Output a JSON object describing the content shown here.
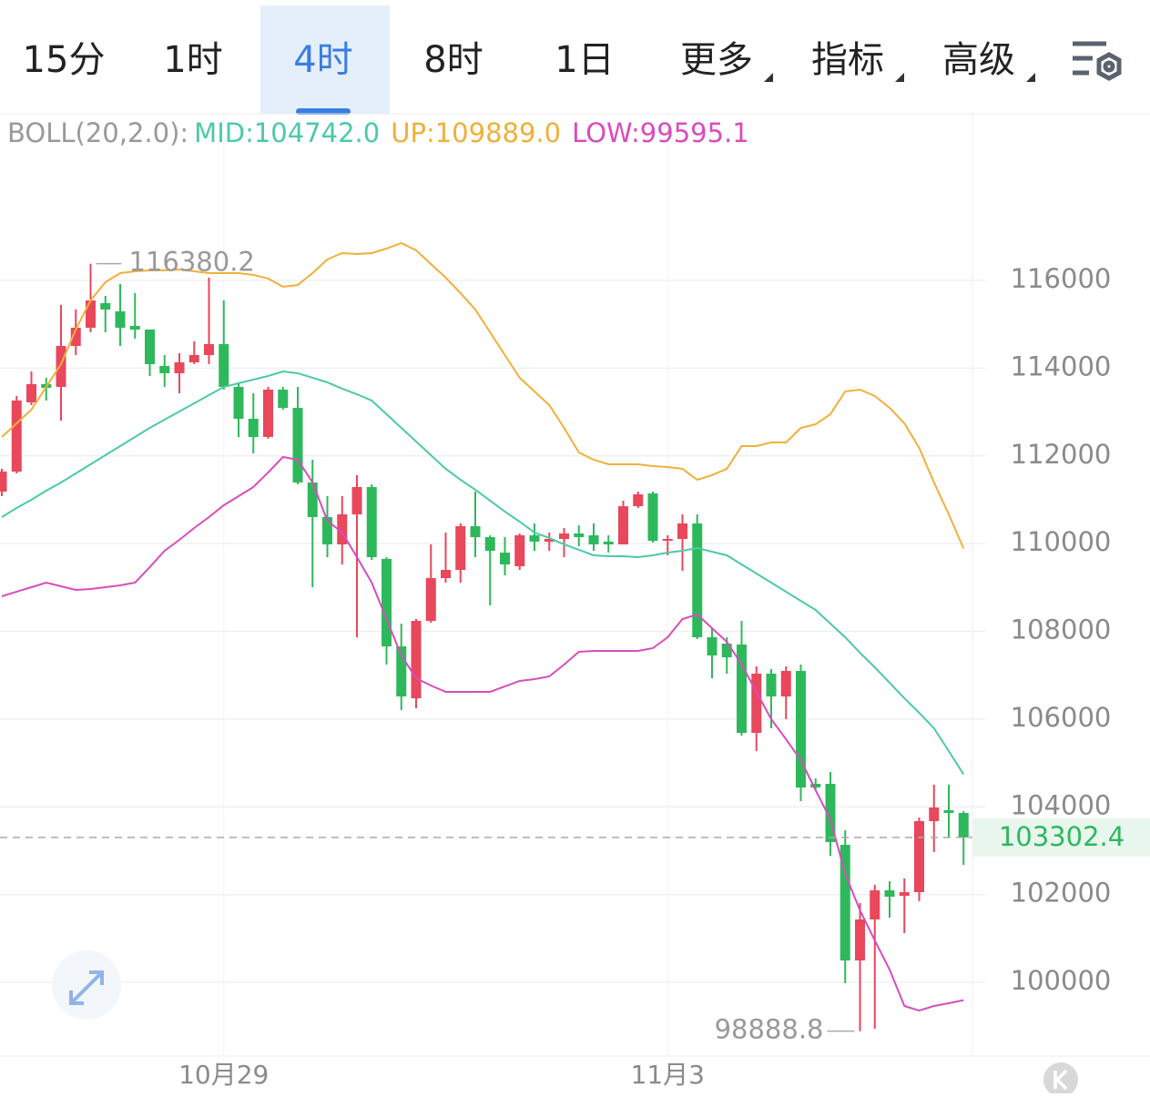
{
  "toolbar": {
    "tabs": [
      "15分",
      "1时",
      "4时",
      "8时",
      "1日",
      "更多",
      "指标",
      "高级"
    ],
    "active": 2
  },
  "chart_data": {
    "type": "candlestick",
    "legend_prefix": "BOLL(20,2.0):",
    "categories": [
      null,
      null,
      null,
      null,
      null,
      null,
      null,
      null,
      null,
      null,
      null,
      null,
      null,
      null,
      null,
      "10月29",
      null,
      null,
      null,
      null,
      null,
      null,
      null,
      null,
      null,
      null,
      null,
      null,
      null,
      null,
      null,
      null,
      null,
      null,
      null,
      null,
      null,
      null,
      null,
      null,
      null,
      null,
      null,
      null,
      null,
      "11月3",
      null,
      null,
      null,
      null,
      null,
      null,
      null,
      null,
      null,
      null,
      null,
      null,
      null,
      null,
      null,
      null,
      null,
      null,
      null,
      null
    ],
    "open": [
      111186,
      111642,
      113220,
      113635,
      113572,
      114506,
      114921,
      115481,
      115295,
      114962,
      114879,
      114050,
      113883,
      114132,
      114298,
      114548,
      113572,
      112846,
      112431,
      113510,
      113095,
      111394,
      110605,
      109983,
      110667,
      111290,
      109650,
      107658,
      106475,
      108239,
      109215,
      109401,
      110397,
      110148,
      109795,
      109484,
      110190,
      110045,
      110107,
      110231,
      110190,
      110045,
      109983,
      110853,
      111144,
      110065,
      110107,
      110460,
      107866,
      107720,
      107700,
      105687,
      107036,
      106517,
      107098,
      104525,
      104525,
      103135,
      100500,
      101434,
      102098,
      101973,
      102056,
      103675,
      103924,
      103862
    ],
    "high": [
      111705,
      113365,
      113925,
      113780,
      115440,
      115336,
      116380.2,
      115647,
      115917,
      115710,
      114879,
      114298,
      114340,
      114609,
      116062,
      115544,
      113676,
      113427,
      113572,
      113572,
      113572,
      111912,
      111082,
      111082,
      111560,
      111352,
      109692,
      108177,
      108281,
      109983,
      110252,
      110460,
      111186,
      110190,
      110148,
      110231,
      110460,
      110252,
      110356,
      110418,
      110460,
      110190,
      110978,
      111186,
      111186,
      110190,
      110667,
      110667,
      108073,
      107866,
      108239,
      107202,
      107140,
      107202,
      107244,
      104650,
      104795,
      103467,
      101807,
      102222,
      102305,
      102367,
      103757,
      104505,
      104505,
      103903
    ],
    "low": [
      111082,
      111600,
      113157,
      113261,
      112804,
      114298,
      114817,
      114817,
      114506,
      114672,
      113821,
      113572,
      113427,
      114091,
      114091,
      113510,
      112431,
      112058,
      112390,
      113053,
      111352,
      109007,
      109692,
      109526,
      107866,
      109630,
      107243,
      106206,
      106247,
      108198,
      109111,
      109111,
      109692,
      108592,
      109277,
      109401,
      109837,
      109837,
      109692,
      109941,
      109837,
      109796,
      109983,
      110812,
      110024,
      109733,
      109381,
      107824,
      106932,
      107036,
      105625,
      105272,
      105791,
      105999,
      104131,
      104380,
      102886,
      99981,
      98888.8,
      98943,
      101475,
      101122,
      101849,
      102969,
      103301,
      102678
    ],
    "close": [
      111642,
      113261,
      113635,
      113551,
      114506,
      114921,
      115544,
      115336,
      114921,
      114879,
      114091,
      113883,
      114132,
      114298,
      114548,
      113572,
      112846,
      112431,
      113510,
      113095,
      111394,
      110605,
      109983,
      110667,
      111290,
      109692,
      107658,
      106517,
      108239,
      109215,
      109401,
      110397,
      110148,
      109837,
      109526,
      110190,
      110045,
      110107,
      110231,
      110148,
      109983,
      109983,
      110853,
      111124,
      110065,
      110107,
      110460,
      107866,
      107451,
      107409,
      105687,
      107036,
      106517,
      107098,
      104442,
      104442,
      103197,
      100500,
      101434,
      102098,
      101952,
      102056,
      103675,
      103985,
      103862,
      103302.4
    ],
    "up_color": "#e8475c",
    "down_color": "#2eb85c",
    "series": [
      {
        "name": "MID:104742.0",
        "color": "#4cc9a8",
        "values": [
          110605,
          110813,
          110999,
          111207,
          111394,
          111601,
          111809,
          112016,
          112224,
          112431,
          112639,
          112825,
          113012,
          113199,
          113386,
          113572,
          113655,
          113738,
          113821,
          113925,
          113884,
          113780,
          113676,
          113531,
          113406,
          113261,
          112950,
          112639,
          112327,
          112016,
          111705,
          111456,
          111228,
          110979,
          110730,
          110501,
          110252,
          110128,
          109983,
          109858,
          109734,
          109713,
          109713,
          109692,
          109734,
          109796,
          109837,
          109900,
          109817,
          109734,
          109526,
          109319,
          109111,
          108904,
          108696,
          108489,
          108177,
          107866,
          107513,
          107181,
          106829,
          106476,
          106144,
          105791,
          105272,
          104742.0
        ]
      },
      {
        "name": "UP:109889.0",
        "color": "#f0b03a",
        "values": [
          112431,
          112742,
          113053,
          113572,
          114091,
          114880,
          115544,
          115959,
          116166,
          116208,
          116228,
          116228,
          116249,
          116208,
          116166,
          116166,
          116166,
          116125,
          116042,
          115855,
          115896,
          116166,
          116477,
          116623,
          116602,
          116623,
          116726,
          116851,
          116685,
          116374,
          116062,
          115710,
          115336,
          114817,
          114298,
          113779,
          113468,
          113157,
          112638,
          112078,
          111912,
          111809,
          111809,
          111809,
          111767,
          111746,
          111705,
          111456,
          111560,
          111705,
          112224,
          112224,
          112307,
          112307,
          112638,
          112721,
          112950,
          113468,
          113510,
          113365,
          113095,
          112742,
          112182,
          111394,
          110667,
          109889.0
        ]
      },
      {
        "name": "LOW:99595.1",
        "color": "#d94cbd",
        "values": [
          108800,
          108904,
          109007,
          109111,
          109028,
          108945,
          108966,
          109007,
          109049,
          109111,
          109464,
          109837,
          110086,
          110356,
          110605,
          110875,
          111082,
          111290,
          111622,
          111974,
          111912,
          111394,
          110522,
          110252,
          109692,
          109111,
          108281,
          107451,
          106932,
          106766,
          106621,
          106621,
          106621,
          106621,
          106746,
          106870,
          106912,
          106974,
          107244,
          107534,
          107555,
          107555,
          107555,
          107555,
          107617,
          107866,
          108281,
          108385,
          108074,
          107762,
          107244,
          106621,
          105999,
          105542,
          105065,
          104380,
          103716,
          102471,
          101641,
          100956,
          100292,
          99462,
          99358,
          99462,
          99524,
          99595.1
        ]
      }
    ],
    "ylim": [
      98321,
      119797
    ],
    "yticks": [
      100000,
      102000,
      104000,
      106000,
      108000,
      110000,
      112000,
      114000,
      116000
    ],
    "current_price": 103302.4,
    "grid": true
  }
}
